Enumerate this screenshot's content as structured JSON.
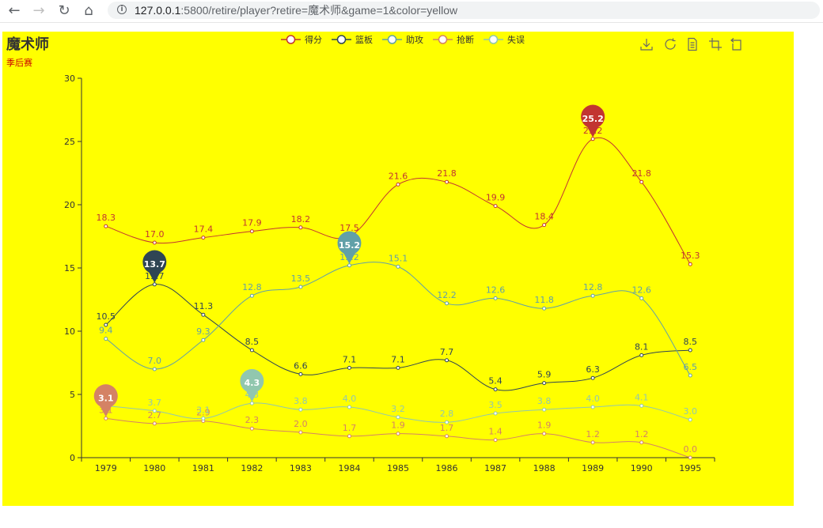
{
  "browser": {
    "back_icon": "←",
    "forward_icon": "→",
    "reload_icon": "↻",
    "home_icon": "⌂",
    "info_icon": "i",
    "url_host": "127.0.0.1",
    "url_path": ":5800/retire/player?retire=魔术师&game=1&color=yellow"
  },
  "chart": {
    "title": "魔术师",
    "subtitle": "季后赛",
    "background": "#ffff00",
    "toolbox": [
      "save-as-image",
      "restore",
      "data-view",
      "zoom",
      "zoom-reset"
    ]
  },
  "chart_data": {
    "type": "line",
    "smooth": true,
    "categories": [
      "1979",
      "1980",
      "1981",
      "1982",
      "1983",
      "1984",
      "1985",
      "1986",
      "1987",
      "1988",
      "1989",
      "1990",
      "1995"
    ],
    "ylim": [
      0,
      30
    ],
    "yticks": [
      0,
      5,
      10,
      15,
      20,
      25,
      30
    ],
    "legend_position": "top-center",
    "grid": false,
    "series": [
      {
        "name": "得分",
        "color": "#c23531",
        "values": [
          18.3,
          17.0,
          17.4,
          17.9,
          18.2,
          17.5,
          21.6,
          21.8,
          19.9,
          18.4,
          25.2,
          21.8,
          15.3
        ],
        "max_marker": "25.2"
      },
      {
        "name": "篮板",
        "color": "#2f4554",
        "values": [
          10.5,
          13.7,
          11.3,
          8.5,
          6.6,
          7.1,
          7.1,
          7.7,
          5.4,
          5.9,
          6.3,
          8.1,
          8.5
        ],
        "max_marker": "13.7"
      },
      {
        "name": "助攻",
        "color": "#61a0a8",
        "values": [
          9.4,
          7.0,
          9.3,
          12.8,
          13.5,
          15.2,
          15.1,
          12.2,
          12.6,
          11.8,
          12.8,
          12.6,
          6.5
        ],
        "max_marker": "15.2"
      },
      {
        "name": "抢断",
        "color": "#d48265",
        "values": [
          3.1,
          2.7,
          2.9,
          2.3,
          2.0,
          1.7,
          1.9,
          1.7,
          1.4,
          1.9,
          1.2,
          1.2,
          0.0
        ],
        "max_marker": "3.1"
      },
      {
        "name": "失误",
        "color": "#91c7ae",
        "values": [
          4.1,
          3.7,
          3.1,
          4.3,
          3.8,
          4.0,
          3.2,
          2.8,
          3.5,
          3.8,
          4.0,
          4.1,
          3.0
        ],
        "max_marker": "4.3"
      }
    ]
  }
}
